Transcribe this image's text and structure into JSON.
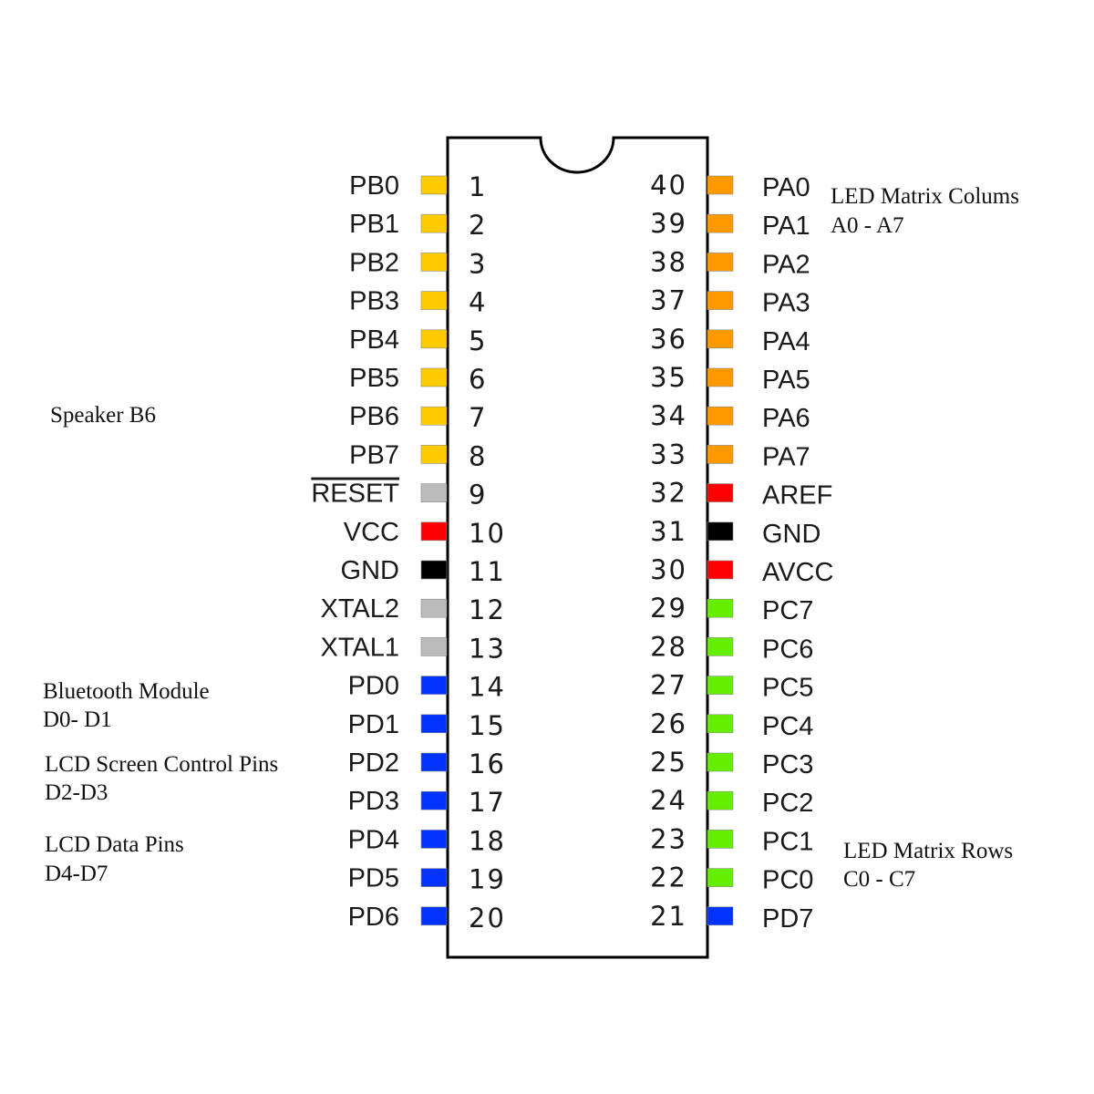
{
  "colors": {
    "portB": "#FFCC00",
    "portA": "#FF9900",
    "portC": "#66EE00",
    "portD": "#0033FF",
    "power": "#FF0000",
    "ground": "#000000",
    "other": "#BBBBBB"
  },
  "left_pins": [
    {
      "number": "1",
      "name": "PB0",
      "color": "#FFCC00"
    },
    {
      "number": "2",
      "name": "PB1",
      "color": "#FFCC00"
    },
    {
      "number": "3",
      "name": "PB2",
      "color": "#FFCC00"
    },
    {
      "number": "4",
      "name": "PB3",
      "color": "#FFCC00"
    },
    {
      "number": "5",
      "name": "PB4",
      "color": "#FFCC00"
    },
    {
      "number": "6",
      "name": "PB5",
      "color": "#FFCC00"
    },
    {
      "number": "7",
      "name": "PB6",
      "color": "#FFCC00"
    },
    {
      "number": "8",
      "name": "PB7",
      "color": "#FFCC00"
    },
    {
      "number": "9",
      "name": "RESET",
      "color": "#BBBBBB",
      "overline": true
    },
    {
      "number": "10",
      "name": "VCC",
      "color": "#FF0000"
    },
    {
      "number": "11",
      "name": "GND",
      "color": "#000000"
    },
    {
      "number": "12",
      "name": "XTAL2",
      "color": "#BBBBBB"
    },
    {
      "number": "13",
      "name": "XTAL1",
      "color": "#BBBBBB"
    },
    {
      "number": "14",
      "name": "PD0",
      "color": "#0033FF"
    },
    {
      "number": "15",
      "name": "PD1",
      "color": "#0033FF"
    },
    {
      "number": "16",
      "name": "PD2",
      "color": "#0033FF"
    },
    {
      "number": "17",
      "name": "PD3",
      "color": "#0033FF"
    },
    {
      "number": "18",
      "name": "PD4",
      "color": "#0033FF"
    },
    {
      "number": "19",
      "name": "PD5",
      "color": "#0033FF"
    },
    {
      "number": "20",
      "name": "PD6",
      "color": "#0033FF"
    }
  ],
  "right_pins": [
    {
      "number": "40",
      "name": "PA0",
      "color": "#FF9900"
    },
    {
      "number": "39",
      "name": "PA1",
      "color": "#FF9900"
    },
    {
      "number": "38",
      "name": "PA2",
      "color": "#FF9900"
    },
    {
      "number": "37",
      "name": "PA3",
      "color": "#FF9900"
    },
    {
      "number": "36",
      "name": "PA4",
      "color": "#FF9900"
    },
    {
      "number": "35",
      "name": "PA5",
      "color": "#FF9900"
    },
    {
      "number": "34",
      "name": "PA6",
      "color": "#FF9900"
    },
    {
      "number": "33",
      "name": "PA7",
      "color": "#FF9900"
    },
    {
      "number": "32",
      "name": "AREF",
      "color": "#FF0000"
    },
    {
      "number": "31",
      "name": "GND",
      "color": "#000000"
    },
    {
      "number": "30",
      "name": "AVCC",
      "color": "#FF0000"
    },
    {
      "number": "29",
      "name": "PC7",
      "color": "#66EE00"
    },
    {
      "number": "28",
      "name": "PC6",
      "color": "#66EE00"
    },
    {
      "number": "27",
      "name": "PC5",
      "color": "#66EE00"
    },
    {
      "number": "26",
      "name": "PC4",
      "color": "#66EE00"
    },
    {
      "number": "25",
      "name": "PC3",
      "color": "#66EE00"
    },
    {
      "number": "24",
      "name": "PC2",
      "color": "#66EE00"
    },
    {
      "number": "23",
      "name": "PC1",
      "color": "#66EE00"
    },
    {
      "number": "22",
      "name": "PC0",
      "color": "#66EE00"
    },
    {
      "number": "21",
      "name": "PD7",
      "color": "#0033FF"
    }
  ],
  "annotations": {
    "led_columns": {
      "line1": "LED Matrix Colums",
      "line2": "A0 - A7"
    },
    "speaker": {
      "line1": "Speaker B6"
    },
    "bluetooth": {
      "line1": "Bluetooth Module",
      "line2": "D0- D1"
    },
    "lcd_control": {
      "line1": "LCD Screen Control Pins",
      "line2": "D2-D3"
    },
    "lcd_data": {
      "line1": "LCD Data Pins",
      "line2": "D4-D7"
    },
    "led_rows": {
      "line1": "LED Matrix Rows",
      "line2": "C0 - C7"
    }
  }
}
